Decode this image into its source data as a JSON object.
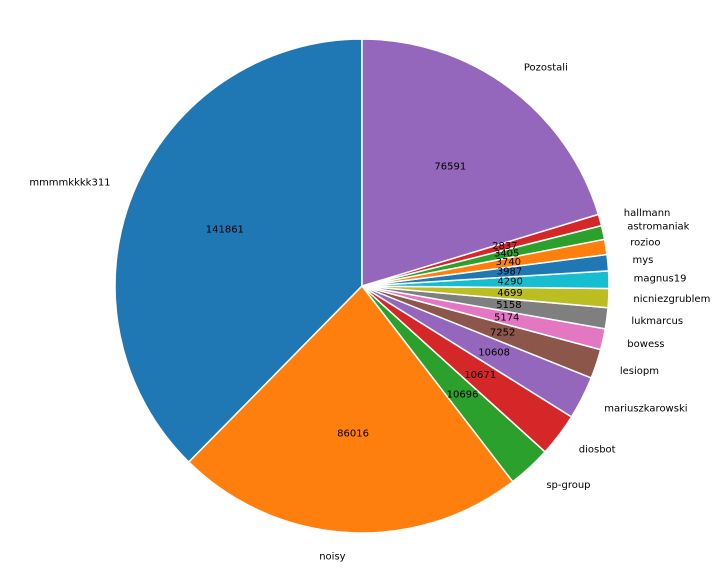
{
  "chart_data": {
    "type": "pie",
    "start_angle_deg": 90,
    "direction": "counterclockwise",
    "show_value_labels": true,
    "legend": "none",
    "slices": [
      {
        "label": "mmmmkkkk311",
        "value": 141861,
        "color": "#1f77b4"
      },
      {
        "label": "noisy",
        "value": 86016,
        "color": "#ff7f0e"
      },
      {
        "label": "sp-group",
        "value": 10696,
        "color": "#2ca02c"
      },
      {
        "label": "diosbot",
        "value": 10671,
        "color": "#d62728"
      },
      {
        "label": "mariuszkarowski",
        "value": 10608,
        "color": "#9467bd"
      },
      {
        "label": "lesiopm",
        "value": 7252,
        "color": "#8c564b"
      },
      {
        "label": "bowess",
        "value": 5174,
        "color": "#e377c2"
      },
      {
        "label": "lukmarcus",
        "value": 5158,
        "color": "#7f7f7f"
      },
      {
        "label": "nicniezgrublem",
        "value": 4699,
        "color": "#bcbd22"
      },
      {
        "label": "magnus19",
        "value": 4290,
        "color": "#17becf"
      },
      {
        "label": "mys",
        "value": 3987,
        "color": "#1f77b4"
      },
      {
        "label": "rozioo",
        "value": 3740,
        "color": "#ff7f0e"
      },
      {
        "label": "astromaniak",
        "value": 3405,
        "color": "#2ca02c"
      },
      {
        "label": "hallmann",
        "value": 2837,
        "color": "#d62728"
      },
      {
        "label": "Pozostali",
        "value": 76591,
        "color": "#9467bd"
      }
    ]
  }
}
